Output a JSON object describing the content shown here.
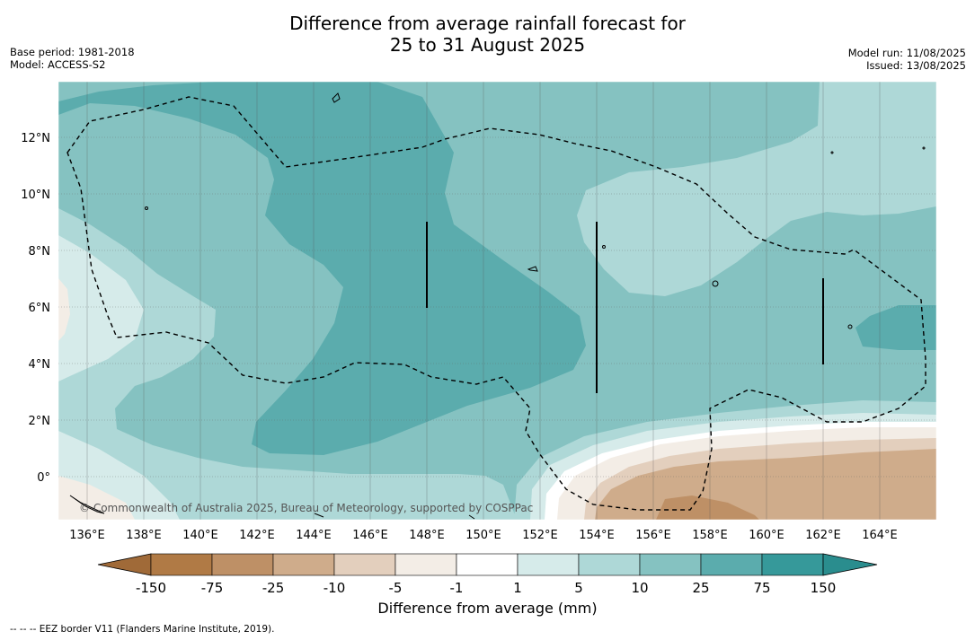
{
  "title": {
    "line1": "Difference from average rainfall forecast for",
    "line2": "25 to 31 August 2025"
  },
  "meta_left": {
    "base_period": "Base period: 1981-2018",
    "model": "Model: ACCESS-S2"
  },
  "meta_right": {
    "model_run": "Model run: 11/08/2025",
    "issued": "Issued: 13/08/2025"
  },
  "map": {
    "lon_range": [
      135,
      166
    ],
    "lat_range": [
      -1.5,
      14
    ],
    "lat_ticks": [
      "12°N",
      "10°N",
      "8°N",
      "6°N",
      "4°N",
      "2°N",
      "0°"
    ],
    "lon_ticks": [
      "136°E",
      "138°E",
      "140°E",
      "142°E",
      "144°E",
      "146°E",
      "148°E",
      "150°E",
      "152°E",
      "154°E",
      "156°E",
      "158°E",
      "160°E",
      "162°E",
      "164°E"
    ],
    "copyright": "© Commonwealth of Australia 2025, Bureau of Meteorology, supported by COSPPac"
  },
  "colorbar": {
    "labels": [
      "-150",
      "-75",
      "-25",
      "-10",
      "-5",
      "-1",
      "1",
      "5",
      "10",
      "25",
      "75",
      "150"
    ],
    "colors": [
      "#b07a45",
      "#be9066",
      "#cfac8b",
      "#e3cfbd",
      "#f3ede6",
      "#ffffff",
      "#d6ebea",
      "#aed8d7",
      "#85c2c1",
      "#5bacad",
      "#36999a"
    ],
    "low_extend_color": "#a06a38",
    "high_extend_color": "#2a8d8e",
    "label": "Difference from average (mm)"
  },
  "footnote": "--  --  -- EEZ border V11 (Flanders Marine Institute, 2019)."
}
